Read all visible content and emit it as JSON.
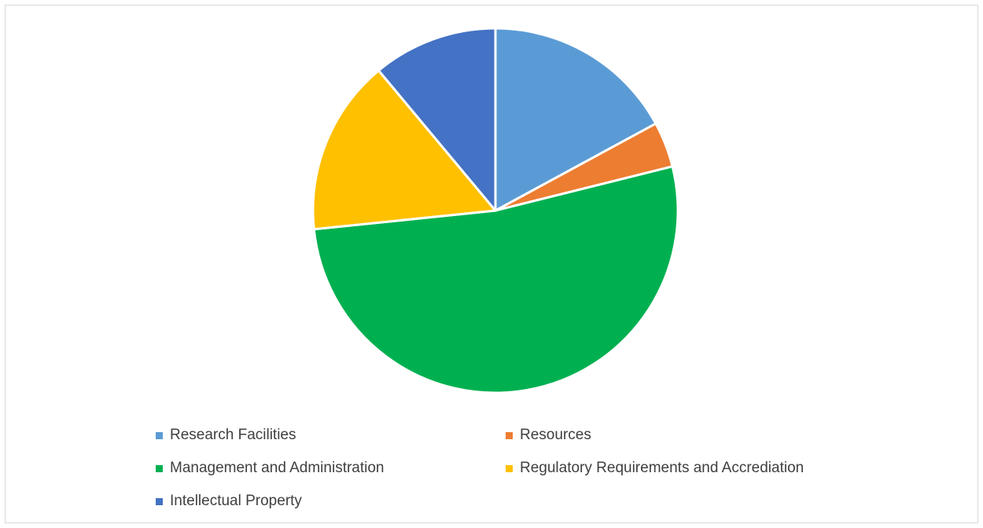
{
  "chart_data": {
    "type": "pie",
    "title": "",
    "legend_position": "bottom",
    "series": [
      {
        "values": [
          17.0,
          4.0,
          52.0,
          15.5,
          11.0
        ],
        "categories": [
          "Research Facilities",
          "Resources",
          "Management and Administration",
          "Regulatory Requirements and Accrediation",
          "Intellectual Property"
        ]
      }
    ],
    "colors": [
      "#5b9bd5",
      "#ed7d31",
      "#00b050",
      "#ffc000",
      "#4472c4"
    ],
    "start_angle_deg": 0,
    "direction": "clockwise"
  }
}
